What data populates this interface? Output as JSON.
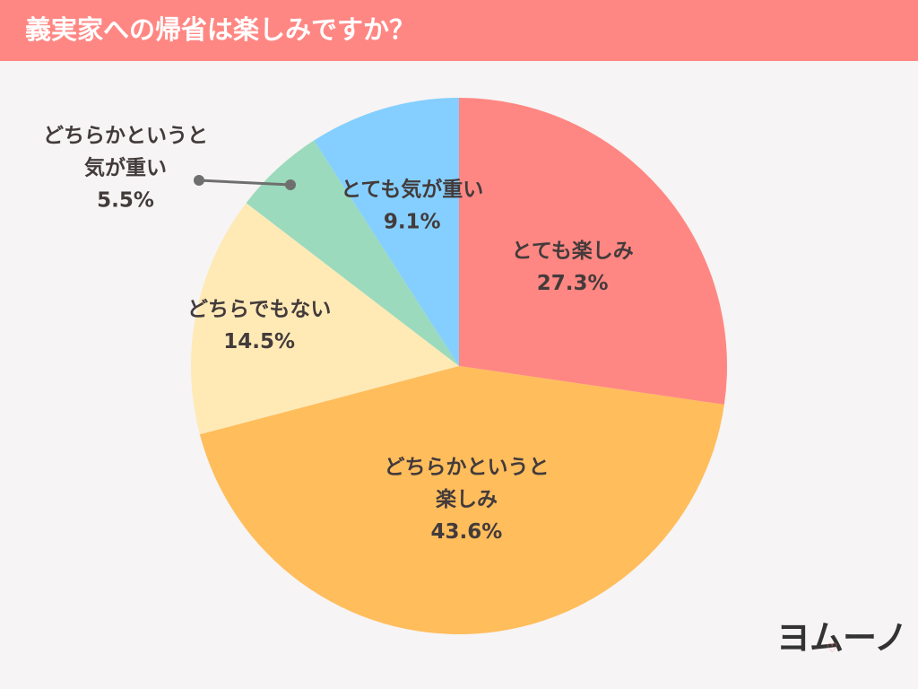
{
  "header": {
    "title": "義実家への帰省は楽しみですか？"
  },
  "brand": {
    "logo_text": "ヨムーノ",
    "heart_glyph": "♡"
  },
  "colors": {
    "header": "#ff8783",
    "text": "#433b3b",
    "slices": [
      "#ff8783",
      "#ffbd5c",
      "#ffeab6",
      "#9bdabc",
      "#84cfff"
    ]
  },
  "chart_data": {
    "type": "pie",
    "title": "義実家への帰省は楽しみですか？",
    "slices": [
      {
        "lines": [
          "とても楽しみ"
        ],
        "value": 27.3,
        "value_label": "27.3%",
        "color": "#ff8783"
      },
      {
        "lines": [
          "どちらかというと",
          "楽しみ"
        ],
        "value": 43.6,
        "value_label": "43.6%",
        "color": "#ffbd5c"
      },
      {
        "lines": [
          "どちらでもない"
        ],
        "value": 14.5,
        "value_label": "14.5%",
        "color": "#ffeab6"
      },
      {
        "lines": [
          "どちらかというと",
          "気が重い"
        ],
        "value": 5.5,
        "value_label": "5.5%",
        "color": "#9bdabc",
        "callout": true
      },
      {
        "lines": [
          "とても気が重い"
        ],
        "value": 9.1,
        "value_label": "9.1%",
        "color": "#84cfff"
      }
    ]
  }
}
